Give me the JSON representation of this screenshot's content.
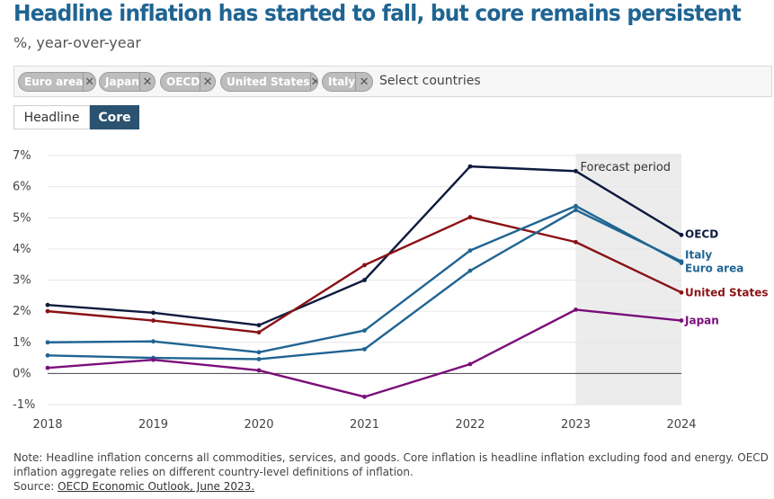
{
  "title": "Headline inflation has started to fall, but core remains persistent",
  "subtitle": "%, year-over-year",
  "selector": {
    "chips": [
      "Euro area",
      "Japan",
      "OECD",
      "United States",
      "Italy"
    ],
    "placeholder": "Select countries"
  },
  "toggle": {
    "headline": "Headline",
    "core": "Core",
    "active": "Core"
  },
  "chart_data": {
    "type": "line",
    "x": [
      2018,
      2019,
      2020,
      2021,
      2022,
      2023,
      2024
    ],
    "ylim": [
      -1,
      7
    ],
    "yticks": [
      "-1%",
      "0%",
      "1%",
      "2%",
      "3%",
      "4%",
      "5%",
      "6%",
      "7%"
    ],
    "xticks": [
      "2018",
      "2019",
      "2020",
      "2021",
      "2022",
      "2023",
      "2024"
    ],
    "forecast_label": "Forecast period",
    "forecast_range": [
      2023,
      2024
    ],
    "grid": true,
    "series": [
      {
        "name": "OECD",
        "color": "#0e1a3e",
        "values": [
          2.2,
          1.95,
          1.55,
          3.0,
          6.65,
          6.5,
          4.45
        ]
      },
      {
        "name": "United States",
        "color": "#8a1215",
        "values": [
          2.0,
          1.7,
          1.32,
          3.48,
          5.02,
          4.22,
          2.6
        ]
      },
      {
        "name": "Italy",
        "color": "#1f6492",
        "values": [
          0.58,
          0.5,
          0.46,
          0.78,
          3.3,
          5.25,
          3.6
        ]
      },
      {
        "name": "Euro area",
        "color": "#1f6492",
        "values": [
          1.0,
          1.03,
          0.68,
          1.38,
          3.95,
          5.38,
          3.55
        ]
      },
      {
        "name": "Japan",
        "color": "#7a0e7a",
        "values": [
          0.18,
          0.44,
          0.1,
          -0.75,
          0.3,
          2.05,
          1.7
        ]
      }
    ]
  },
  "footer": {
    "note": "Note: Headline inflation concerns all commodities, services, and goods. Core inflation is headline inflation excluding food and energy. OECD inflation aggregate relies on different country-level definitions of inflation.",
    "source_prefix": "Source: ",
    "source_link": "OECD Economic Outlook, June 2023."
  }
}
